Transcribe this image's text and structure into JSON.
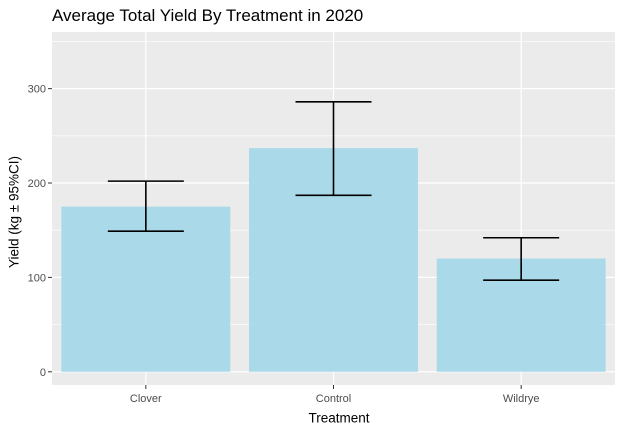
{
  "chart_data": {
    "type": "bar",
    "title": "Average Total Yield By Treatment in 2020",
    "xlabel": "Treatment",
    "ylabel": "Yield (kg ± 95%CI)",
    "categories": [
      "Clover",
      "Control",
      "Wildrye"
    ],
    "values": [
      175,
      237,
      120
    ],
    "error_bars": [
      {
        "category": "Clover",
        "lower": 149,
        "upper": 202
      },
      {
        "category": "Control",
        "lower": 187,
        "upper": 286
      },
      {
        "category": "Wildrye",
        "lower": 97,
        "upper": 142
      }
    ],
    "ylim": [
      -14,
      360
    ],
    "yticks": [
      0,
      100,
      200,
      300
    ],
    "ytick_labels": [
      "0",
      "100",
      "200",
      "300"
    ],
    "grid": true,
    "colors": {
      "bar": "#a6d8ea",
      "panel": "#ebebeb",
      "grid_major": "#ffffff",
      "error_bar": "#000000"
    }
  }
}
